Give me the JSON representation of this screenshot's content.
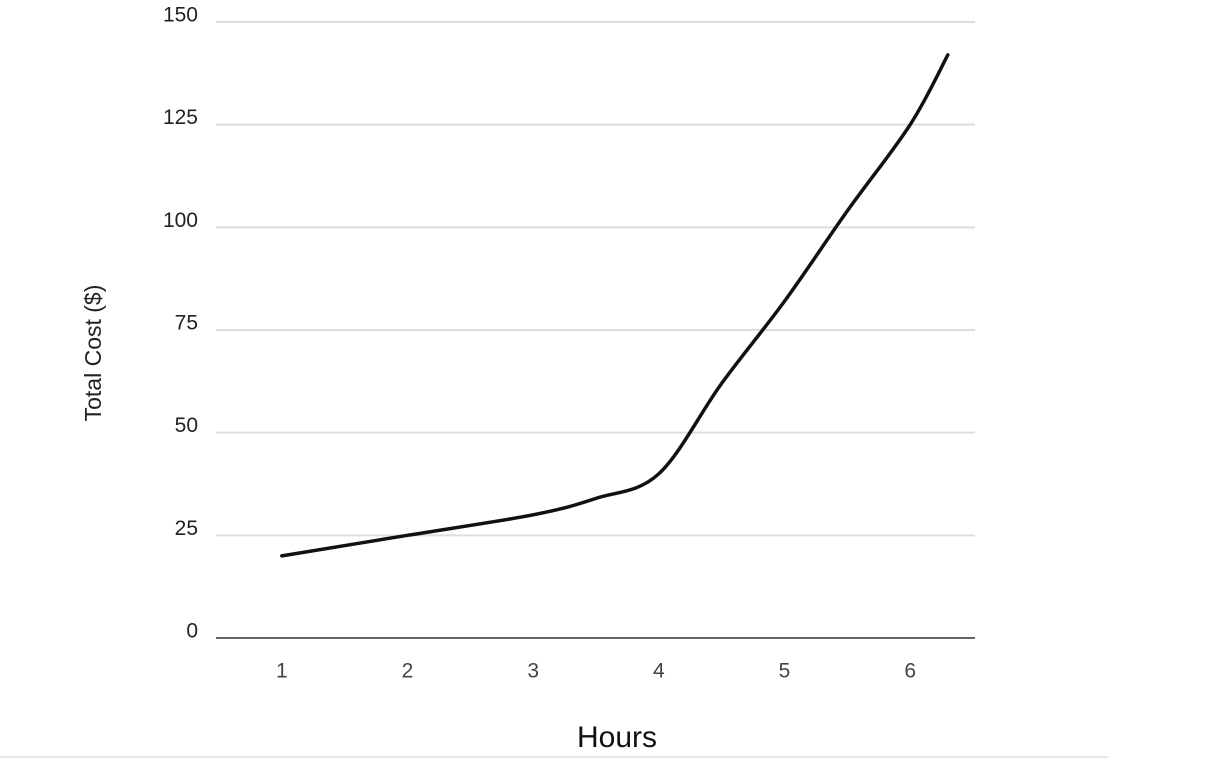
{
  "chart_data": {
    "type": "line",
    "x_label": "Hours",
    "y_label": "Total Cost ($)",
    "x": [
      1,
      2,
      3,
      3.5,
      4,
      4.5,
      5,
      5.5,
      6,
      6.3
    ],
    "series": [
      {
        "name": "Total Cost",
        "color": "#111111",
        "values": [
          20,
          25,
          30,
          34,
          40,
          62,
          82,
          104,
          125,
          142
        ]
      }
    ],
    "xlim": [
      0.5,
      6.5
    ],
    "xticks": [
      1,
      2,
      3,
      4,
      5,
      6
    ],
    "ylim": [
      0,
      150
    ],
    "yticks": [
      0,
      25,
      50,
      75,
      100,
      125,
      150
    ],
    "grid": true
  }
}
